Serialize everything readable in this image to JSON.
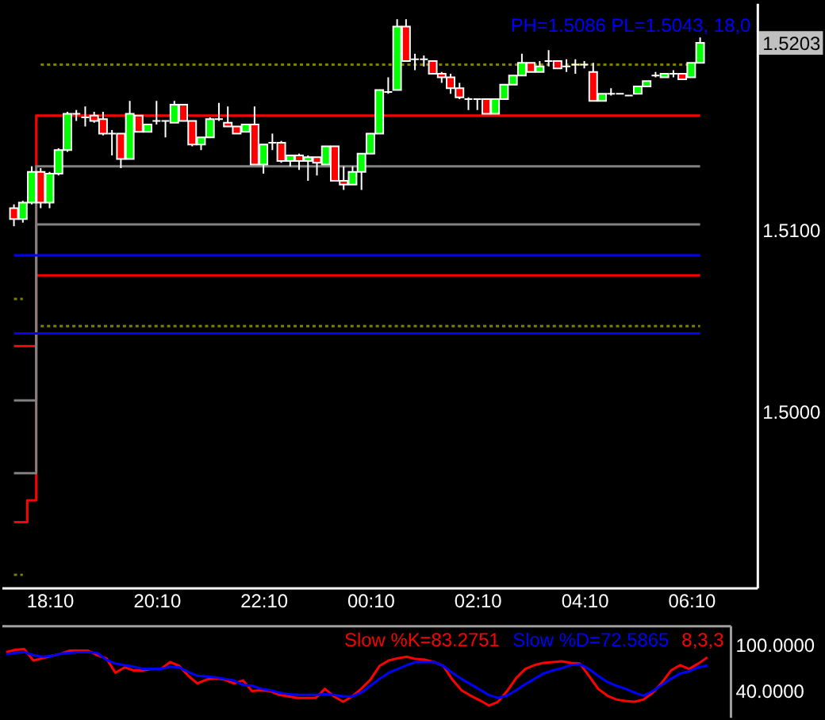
{
  "chart_data": [
    {
      "type": "candlestick",
      "categories": [
        null,
        null,
        null,
        null,
        "18:10",
        null,
        null,
        null,
        null,
        null,
        null,
        null,
        null,
        null,
        null,
        null,
        "20:10",
        null,
        null,
        null,
        null,
        null,
        null,
        null,
        null,
        null,
        null,
        null,
        "22:10",
        null,
        null,
        null,
        null,
        null,
        null,
        null,
        null,
        null,
        null,
        null,
        "00:10",
        null,
        null,
        null,
        null,
        null,
        null,
        null,
        null,
        null,
        null,
        null,
        "02:10",
        null,
        null,
        null,
        null,
        null,
        null,
        null,
        null,
        null,
        null,
        null,
        "04:10",
        null,
        null,
        null,
        null,
        null,
        null,
        null,
        null,
        null,
        null,
        null,
        "06:10",
        null,
        null,
        null,
        null,
        null,
        null
      ],
      "ohlc": [
        [
          1.5112,
          1.5114,
          1.5102,
          1.5106
        ],
        [
          1.5106,
          1.5116,
          1.5104,
          1.5115
        ],
        [
          1.5115,
          1.5135,
          1.5114,
          1.5132
        ],
        [
          1.5132,
          1.5134,
          1.5112,
          1.5115
        ],
        [
          1.5115,
          1.5132,
          1.5112,
          1.5131
        ],
        [
          1.5131,
          1.5145,
          1.513,
          1.5144
        ],
        [
          1.5144,
          1.5165,
          1.5143,
          1.5164
        ],
        [
          1.5164,
          1.5166,
          1.516,
          1.5164
        ],
        [
          1.5162,
          1.5168,
          1.5157,
          1.5162
        ],
        [
          1.5163,
          1.5165,
          1.5159,
          1.516
        ],
        [
          1.5161,
          1.5165,
          1.5152,
          1.5153
        ],
        [
          1.5153,
          1.5155,
          1.5141,
          1.5153
        ],
        [
          1.5153,
          1.5153,
          1.5134,
          1.5139
        ],
        [
          1.5139,
          1.5171,
          1.5139,
          1.5164
        ],
        [
          1.5163,
          1.5163,
          1.5154,
          1.5154
        ],
        [
          1.5154,
          1.5158,
          1.5154,
          1.5158
        ],
        [
          1.516,
          1.5171,
          1.5158,
          1.516
        ],
        [
          1.516,
          1.516,
          1.5151,
          1.516
        ],
        [
          1.5159,
          1.5171,
          1.5159,
          1.5169
        ],
        [
          1.5169,
          1.5169,
          1.516,
          1.516
        ],
        [
          1.516,
          1.516,
          1.5146,
          1.5147
        ],
        [
          1.5147,
          1.5151,
          1.5144,
          1.5151
        ],
        [
          1.5151,
          1.5162,
          1.5151,
          1.5161
        ],
        [
          1.5161,
          1.517,
          1.516,
          1.5161
        ],
        [
          1.5159,
          1.5168,
          1.5157,
          1.5157
        ],
        [
          1.5157,
          1.5157,
          1.5153,
          1.5153
        ],
        [
          1.5154,
          1.5158,
          1.5154,
          1.5158
        ],
        [
          1.5158,
          1.5168,
          1.5136,
          1.5136
        ],
        [
          1.5136,
          1.5147,
          1.5131,
          1.5147
        ],
        [
          1.5148,
          1.5153,
          1.5144,
          1.5148
        ],
        [
          1.5148,
          1.5149,
          1.5137,
          1.5138
        ],
        [
          1.5138,
          1.5141,
          1.5135,
          1.5141
        ],
        [
          1.5141,
          1.5142,
          1.5133,
          1.5138
        ],
        [
          1.5138,
          1.5141,
          1.5127,
          1.514
        ],
        [
          1.514,
          1.514,
          1.513,
          1.5137
        ],
        [
          1.5136,
          1.5146,
          1.5136,
          1.5146
        ],
        [
          1.5146,
          1.5146,
          1.5127,
          1.5127
        ],
        [
          1.5127,
          1.5135,
          1.5122,
          1.5125
        ],
        [
          1.5125,
          1.5135,
          1.5125,
          1.5132
        ],
        [
          1.5132,
          1.5142,
          1.5122,
          1.5142
        ],
        [
          1.5142,
          1.5153,
          1.5142,
          1.5153
        ],
        [
          1.5153,
          1.5177,
          1.5153,
          1.5177
        ],
        [
          1.5176,
          1.5184,
          1.5175,
          1.5176
        ],
        [
          1.5177,
          1.5216,
          1.5177,
          1.5212
        ],
        [
          1.5212,
          1.5216,
          1.5193,
          1.5193
        ],
        [
          1.5194,
          1.5197,
          1.5188,
          1.5194
        ],
        [
          1.5194,
          1.5196,
          1.519,
          1.5194
        ],
        [
          1.5193,
          1.5193,
          1.5186,
          1.5186
        ],
        [
          1.5186,
          1.5187,
          1.5181,
          1.5184
        ],
        [
          1.5184,
          1.5186,
          1.5175,
          1.5178
        ],
        [
          1.5178,
          1.5181,
          1.5172,
          1.5173
        ],
        [
          1.5172,
          1.5173,
          1.5166,
          1.5172
        ],
        [
          1.5172,
          1.5172,
          1.5166,
          1.5172
        ],
        [
          1.5172,
          1.5172,
          1.5164,
          1.5164
        ],
        [
          1.5164,
          1.5172,
          1.5164,
          1.5172
        ],
        [
          1.5172,
          1.518,
          1.5172,
          1.518
        ],
        [
          1.518,
          1.5185,
          1.518,
          1.5185
        ],
        [
          1.5185,
          1.5197,
          1.5185,
          1.5192
        ],
        [
          1.5192,
          1.5192,
          1.5187,
          1.5187
        ],
        [
          1.5187,
          1.5193,
          1.5187,
          1.519
        ],
        [
          1.5193,
          1.5199,
          1.519,
          1.5193
        ],
        [
          1.5193,
          1.5193,
          1.5189,
          1.5189
        ],
        [
          1.519,
          1.5194,
          1.5187,
          1.519
        ],
        [
          1.5191,
          1.5194,
          1.5186,
          1.5191
        ],
        [
          1.5191,
          1.5193,
          1.5189,
          1.5191
        ],
        [
          1.5187,
          1.5192,
          1.5171,
          1.5171
        ],
        [
          1.5171,
          1.5175,
          1.5171,
          1.5175
        ],
        [
          1.5175,
          1.5178,
          1.5174,
          1.5175
        ],
        [
          1.5175,
          1.5175,
          1.5175,
          1.5175
        ],
        [
          1.5174,
          1.5174,
          1.5174,
          1.5174
        ],
        [
          1.5175,
          1.5179,
          1.5175,
          1.5179
        ],
        [
          1.5179,
          1.5182,
          1.5179,
          1.5182
        ],
        [
          1.5185,
          1.5187,
          1.5184,
          1.5185
        ],
        [
          1.5184,
          1.5186,
          1.5184,
          1.5186
        ],
        [
          1.5186,
          1.5188,
          1.5184,
          1.5186
        ],
        [
          1.5186,
          1.5186,
          1.5183,
          1.5183
        ],
        [
          1.5184,
          1.5192,
          1.5184,
          1.5192
        ],
        [
          1.5192,
          1.5206,
          1.5192,
          1.5203
        ],
        null,
        null,
        null,
        null,
        null
      ],
      "colors": [
        "#ff0000",
        "#00ff00",
        "#00ff00",
        "#ff0000",
        "#00ff00",
        "#00ff00",
        "#00ff00",
        "#ffffff",
        "#ffffff",
        "#ff0000",
        "#ff0000",
        "#ffffff",
        "#ff0000",
        "#00ff00",
        "#ff0000",
        "#00ff00",
        "#ffffff",
        "#ffffff",
        "#00ff00",
        "#ff0000",
        "#ff0000",
        "#00ff00",
        "#00ff00",
        "#ffffff",
        "#ff0000",
        "#ff0000",
        "#00ff00",
        "#ff0000",
        "#00ff00",
        "#ffffff",
        "#ff0000",
        "#00ff00",
        "#ff0000",
        "#00ff00",
        "#ff0000",
        "#00ff00",
        "#ff0000",
        "#ff0000",
        "#00ff00",
        "#00ff00",
        "#00ff00",
        "#00ff00",
        "#ffffff",
        "#00ff00",
        "#ff0000",
        "#ffffff",
        "#ffffff",
        "#ff0000",
        "#ff0000",
        "#ff0000",
        "#ff0000",
        "#ffffff",
        "#ffffff",
        "#ff0000",
        "#00ff00",
        "#00ff00",
        "#00ff00",
        "#00ff00",
        "#ff0000",
        "#00ff00",
        "#ffffff",
        "#ff0000",
        "#ffffff",
        "#ffffff",
        "#ffffff",
        "#ff0000",
        "#00ff00",
        "#ffffff",
        "#ffffff",
        "#ffffff",
        "#00ff00",
        "#00ff00",
        "#ffffff",
        "#00ff00",
        "#ffffff",
        "#ff0000",
        "#00ff00",
        "#00ff00",
        null,
        null,
        null,
        null,
        null
      ],
      "series": [
        {
          "type": "step",
          "color": "#ff0000",
          "values": [
            1.4939,
            1.4939,
            1.4951,
            1.5163,
            1.5163,
            1.5163,
            1.5163,
            1.5163,
            1.5163,
            1.5163,
            1.5163,
            1.5163,
            1.5163,
            1.5163,
            1.5163,
            1.5163,
            1.5163,
            1.5163,
            1.5163,
            1.5163,
            1.5163,
            1.5163,
            1.5163,
            1.5163,
            1.5163,
            1.5163,
            1.5163,
            1.5163,
            1.5163,
            1.5163,
            1.5163,
            1.5163,
            1.5163,
            1.5163,
            1.5163,
            1.5163,
            1.5163,
            1.5163,
            1.5163,
            1.5163,
            1.5163,
            1.5163,
            1.5163,
            1.5163,
            1.5163,
            1.5163,
            1.5163,
            1.5163,
            1.5163,
            1.5163,
            1.5163,
            1.5163,
            1.5163,
            1.5163,
            1.5163,
            1.5163,
            1.5163,
            1.5163,
            1.5163,
            1.5163,
            1.5163,
            1.5163,
            1.5163,
            1.5163,
            1.5163,
            1.5163,
            1.5163,
            1.5163,
            1.5163,
            1.5163,
            1.5163,
            1.5163,
            1.5163,
            1.5163,
            1.5163,
            1.5163,
            1.5163,
            1.5163,
            null,
            null,
            null,
            null,
            null
          ]
        },
        {
          "type": "step",
          "color": "#ff0000",
          "values": [
            1.5036,
            1.5036,
            1.5036,
            1.5075,
            1.5075,
            1.5075,
            1.5075,
            1.5075,
            1.5075,
            1.5075,
            1.5075,
            1.5075,
            1.5075,
            1.5075,
            1.5075,
            1.5075,
            1.5075,
            1.5075,
            1.5075,
            1.5075,
            1.5075,
            1.5075,
            1.5075,
            1.5075,
            1.5075,
            1.5075,
            1.5075,
            1.5075,
            1.5075,
            1.5075,
            1.5075,
            1.5075,
            1.5075,
            1.5075,
            1.5075,
            1.5075,
            1.5075,
            1.5075,
            1.5075,
            1.5075,
            1.5075,
            1.5075,
            1.5075,
            1.5075,
            1.5075,
            1.5075,
            1.5075,
            1.5075,
            1.5075,
            1.5075,
            1.5075,
            1.5075,
            1.5075,
            1.5075,
            1.5075,
            1.5075,
            1.5075,
            1.5075,
            1.5075,
            1.5075,
            1.5075,
            1.5075,
            1.5075,
            1.5075,
            1.5075,
            1.5075,
            1.5075,
            1.5075,
            1.5075,
            1.5075,
            1.5075,
            1.5075,
            1.5075,
            1.5075,
            1.5075,
            1.5075,
            1.5075,
            1.5075,
            null,
            null,
            null,
            null,
            null
          ]
        },
        {
          "type": "step",
          "color": "#808080",
          "values": [
            1.5006,
            1.5006,
            1.5006,
            1.5135,
            1.5135,
            1.5135,
            1.5135,
            1.5135,
            1.5135,
            1.5135,
            1.5135,
            1.5135,
            1.5135,
            1.5135,
            1.5135,
            1.5135,
            1.5135,
            1.5135,
            1.5135,
            1.5135,
            1.5135,
            1.5135,
            1.5135,
            1.5135,
            1.5135,
            1.5135,
            1.5135,
            1.5135,
            1.5135,
            1.5135,
            1.5135,
            1.5135,
            1.5135,
            1.5135,
            1.5135,
            1.5135,
            1.5135,
            1.5135,
            1.5135,
            1.5135,
            1.5135,
            1.5135,
            1.5135,
            1.5135,
            1.5135,
            1.5135,
            1.5135,
            1.5135,
            1.5135,
            1.5135,
            1.5135,
            1.5135,
            1.5135,
            1.5135,
            1.5135,
            1.5135,
            1.5135,
            1.5135,
            1.5135,
            1.5135,
            1.5135,
            1.5135,
            1.5135,
            1.5135,
            1.5135,
            1.5135,
            1.5135,
            1.5135,
            1.5135,
            1.5135,
            1.5135,
            1.5135,
            1.5135,
            1.5135,
            1.5135,
            1.5135,
            1.5135,
            1.5135,
            null,
            null,
            null,
            null,
            null
          ]
        },
        {
          "type": "step",
          "color": "#808080",
          "values": [
            1.4966,
            1.4966,
            1.4966,
            1.5103,
            1.5103,
            1.5103,
            1.5103,
            1.5103,
            1.5103,
            1.5103,
            1.5103,
            1.5103,
            1.5103,
            1.5103,
            1.5103,
            1.5103,
            1.5103,
            1.5103,
            1.5103,
            1.5103,
            1.5103,
            1.5103,
            1.5103,
            1.5103,
            1.5103,
            1.5103,
            1.5103,
            1.5103,
            1.5103,
            1.5103,
            1.5103,
            1.5103,
            1.5103,
            1.5103,
            1.5103,
            1.5103,
            1.5103,
            1.5103,
            1.5103,
            1.5103,
            1.5103,
            1.5103,
            1.5103,
            1.5103,
            1.5103,
            1.5103,
            1.5103,
            1.5103,
            1.5103,
            1.5103,
            1.5103,
            1.5103,
            1.5103,
            1.5103,
            1.5103,
            1.5103,
            1.5103,
            1.5103,
            1.5103,
            1.5103,
            1.5103,
            1.5103,
            1.5103,
            1.5103,
            1.5103,
            1.5103,
            1.5103,
            1.5103,
            1.5103,
            1.5103,
            1.5103,
            1.5103,
            1.5103,
            1.5103,
            1.5103,
            1.5103,
            1.5103,
            1.5103,
            null,
            null,
            null,
            null,
            null
          ]
        },
        {
          "type": "line",
          "name": "PH=1.5086 PL=1.5043, 18,0",
          "color": "#0000ff",
          "values": [
            1.5086,
            1.5086,
            1.5086,
            1.5086,
            1.5086,
            1.5086,
            1.5086,
            1.5086,
            1.5086,
            1.5086,
            1.5086,
            1.5086,
            1.5086,
            1.5086,
            1.5086,
            1.5086,
            1.5086,
            1.5086,
            1.5086,
            1.5086,
            1.5086,
            1.5086,
            1.5086,
            1.5086,
            1.5086,
            1.5086,
            1.5086,
            1.5086,
            1.5086,
            1.5086,
            1.5086,
            1.5086,
            1.5086,
            1.5086,
            1.5086,
            1.5086,
            1.5086,
            1.5086,
            1.5086,
            1.5086,
            1.5086,
            1.5086,
            1.5086,
            1.5086,
            1.5086,
            1.5086,
            1.5086,
            1.5086,
            1.5086,
            1.5086,
            1.5086,
            1.5086,
            1.5086,
            1.5086,
            1.5086,
            1.5086,
            1.5086,
            1.5086,
            1.5086,
            1.5086,
            1.5086,
            1.5086,
            1.5086,
            1.5086,
            1.5086,
            1.5086,
            1.5086,
            1.5086,
            1.5086,
            1.5086,
            1.5086,
            1.5086,
            1.5086,
            1.5086,
            1.5086,
            1.5086,
            1.5086,
            1.5086,
            null,
            null,
            null,
            null,
            null
          ]
        },
        {
          "type": "line",
          "color": "#0000ff",
          "values": [
            1.5043,
            1.5043,
            1.5043,
            1.5043,
            1.5043,
            1.5043,
            1.5043,
            1.5043,
            1.5043,
            1.5043,
            1.5043,
            1.5043,
            1.5043,
            1.5043,
            1.5043,
            1.5043,
            1.5043,
            1.5043,
            1.5043,
            1.5043,
            1.5043,
            1.5043,
            1.5043,
            1.5043,
            1.5043,
            1.5043,
            1.5043,
            1.5043,
            1.5043,
            1.5043,
            1.5043,
            1.5043,
            1.5043,
            1.5043,
            1.5043,
            1.5043,
            1.5043,
            1.5043,
            1.5043,
            1.5043,
            1.5043,
            1.5043,
            1.5043,
            1.5043,
            1.5043,
            1.5043,
            1.5043,
            1.5043,
            1.5043,
            1.5043,
            1.5043,
            1.5043,
            1.5043,
            1.5043,
            1.5043,
            1.5043,
            1.5043,
            1.5043,
            1.5043,
            1.5043,
            1.5043,
            1.5043,
            1.5043,
            1.5043,
            1.5043,
            1.5043,
            1.5043,
            1.5043,
            1.5043,
            1.5043,
            1.5043,
            1.5043,
            1.5043,
            1.5043,
            1.5043,
            1.5043,
            1.5043,
            1.5043,
            null,
            null,
            null,
            null,
            null
          ]
        },
        {
          "type": "line",
          "color": "#808000",
          "line_style": "dotted",
          "values": [
            1.5062,
            1.5062,
            null,
            1.5191,
            1.5191,
            1.5191,
            1.5191,
            1.5191,
            1.5191,
            1.5191,
            1.5191,
            1.5191,
            1.5191,
            1.5191,
            1.5191,
            1.5191,
            1.5191,
            1.5191,
            1.5191,
            1.5191,
            1.5191,
            1.5191,
            1.5191,
            1.5191,
            1.5191,
            1.5191,
            1.5191,
            1.5191,
            1.5191,
            1.5191,
            1.5191,
            1.5191,
            1.5191,
            1.5191,
            1.5191,
            1.5191,
            1.5191,
            1.5191,
            1.5191,
            1.5191,
            1.5191,
            1.5191,
            1.5191,
            1.5191,
            1.5191,
            1.5191,
            1.5191,
            1.5191,
            1.5191,
            1.5191,
            1.5191,
            1.5191,
            1.5191,
            1.5191,
            1.5191,
            1.5191,
            1.5191,
            1.5191,
            1.5191,
            1.5191,
            1.5191,
            1.5191,
            1.5191,
            1.5191,
            1.5191,
            1.5191,
            1.5191,
            1.5191,
            1.5191,
            1.5191,
            1.5191,
            1.5191,
            1.5191,
            1.5191,
            1.5191,
            1.5191,
            1.5191,
            null,
            null,
            null,
            null,
            null,
            null
          ]
        },
        {
          "type": "line",
          "color": "#808000",
          "line_style": "dotted",
          "values": [
            1.491,
            1.491,
            null,
            1.5047,
            1.5047,
            1.5047,
            1.5047,
            1.5047,
            1.5047,
            1.5047,
            1.5047,
            1.5047,
            1.5047,
            1.5047,
            1.5047,
            1.5047,
            1.5047,
            1.5047,
            1.5047,
            1.5047,
            1.5047,
            1.5047,
            1.5047,
            1.5047,
            1.5047,
            1.5047,
            1.5047,
            1.5047,
            1.5047,
            1.5047,
            1.5047,
            1.5047,
            1.5047,
            1.5047,
            1.5047,
            1.5047,
            1.5047,
            1.5047,
            1.5047,
            1.5047,
            1.5047,
            1.5047,
            1.5047,
            1.5047,
            1.5047,
            1.5047,
            1.5047,
            1.5047,
            1.5047,
            1.5047,
            1.5047,
            1.5047,
            1.5047,
            1.5047,
            1.5047,
            1.5047,
            1.5047,
            1.5047,
            1.5047,
            1.5047,
            1.5047,
            1.5047,
            1.5047,
            1.5047,
            1.5047,
            1.5047,
            1.5047,
            1.5047,
            1.5047,
            1.5047,
            1.5047,
            1.5047,
            1.5047,
            1.5047,
            1.5047,
            1.5047,
            1.5047,
            1.5047,
            null,
            null,
            null,
            null,
            null
          ]
        }
      ],
      "ylim": [
        1.4903,
        1.5225
      ],
      "yticks": [
        {
          "value": 1.5,
          "label": "1.5000"
        },
        {
          "value": 1.51,
          "label": "1.5100"
        },
        {
          "value": 1.5203,
          "label": "1.5203"
        }
      ]
    },
    {
      "type": "line",
      "categories": [
        null,
        null,
        null,
        null,
        null,
        null,
        null,
        null,
        null,
        null,
        null,
        null,
        null,
        null,
        null,
        null,
        null,
        null,
        null,
        null,
        null,
        null,
        null,
        null,
        null,
        null,
        null,
        null,
        null,
        null,
        null,
        null,
        null,
        null,
        null,
        null,
        null,
        null,
        null,
        null,
        null,
        null,
        null,
        null,
        null,
        null,
        null,
        null,
        null,
        null,
        null,
        null,
        null,
        null,
        null,
        null,
        null,
        null,
        null,
        null,
        null,
        null,
        null,
        null,
        null,
        null,
        null,
        null,
        null,
        null,
        null,
        null,
        null,
        null,
        null,
        null,
        null,
        null,
        null,
        null
      ],
      "series": [
        {
          "name": "Slow %K=83.2751",
          "color": "#ff0000",
          "values": [
            90,
            93,
            94,
            79,
            82,
            85,
            88,
            92,
            92,
            92,
            86,
            82,
            63,
            70,
            66,
            66,
            68,
            68,
            77,
            72,
            59,
            49,
            54,
            56,
            54,
            49,
            53,
            39,
            40,
            39,
            34,
            32,
            30,
            30,
            30,
            42,
            32,
            25,
            32,
            42,
            54,
            72,
            79,
            82,
            84,
            81,
            80,
            77,
            72,
            54,
            40,
            33,
            27,
            20,
            25,
            39,
            56,
            68,
            73,
            76,
            77,
            78,
            76,
            75,
            59,
            42,
            33,
            28,
            26,
            25,
            28,
            37,
            50,
            66,
            73,
            68,
            75,
            83.2751,
            null,
            null
          ]
        },
        {
          "name": "Slow %D=72.5865",
          "color": "#0000ff",
          "values": [
            87,
            89,
            90,
            86,
            84,
            85,
            88,
            89,
            90,
            90,
            89,
            80,
            75,
            73,
            71,
            68,
            68,
            68,
            71,
            70,
            64,
            59,
            58,
            57,
            55,
            53,
            47,
            46,
            42,
            40,
            37,
            35,
            34,
            34,
            34,
            35,
            34,
            32,
            32,
            37,
            46,
            55,
            63,
            68,
            73,
            77,
            77,
            77,
            72,
            63,
            55,
            48,
            41,
            34,
            30,
            33,
            40,
            48,
            55,
            62,
            66,
            69,
            73,
            74,
            68,
            59,
            51,
            46,
            42,
            37,
            33,
            39,
            47,
            55,
            62,
            65,
            70,
            72.5865,
            null,
            null
          ]
        }
      ],
      "annotations": [
        "8,3,3"
      ],
      "ylim": [
        5,
        125
      ],
      "yticks": [
        {
          "value": 100,
          "label": "100.0000"
        },
        {
          "value": 40,
          "label": "40.0000"
        }
      ],
      "tick_labels": "y"
    }
  ]
}
